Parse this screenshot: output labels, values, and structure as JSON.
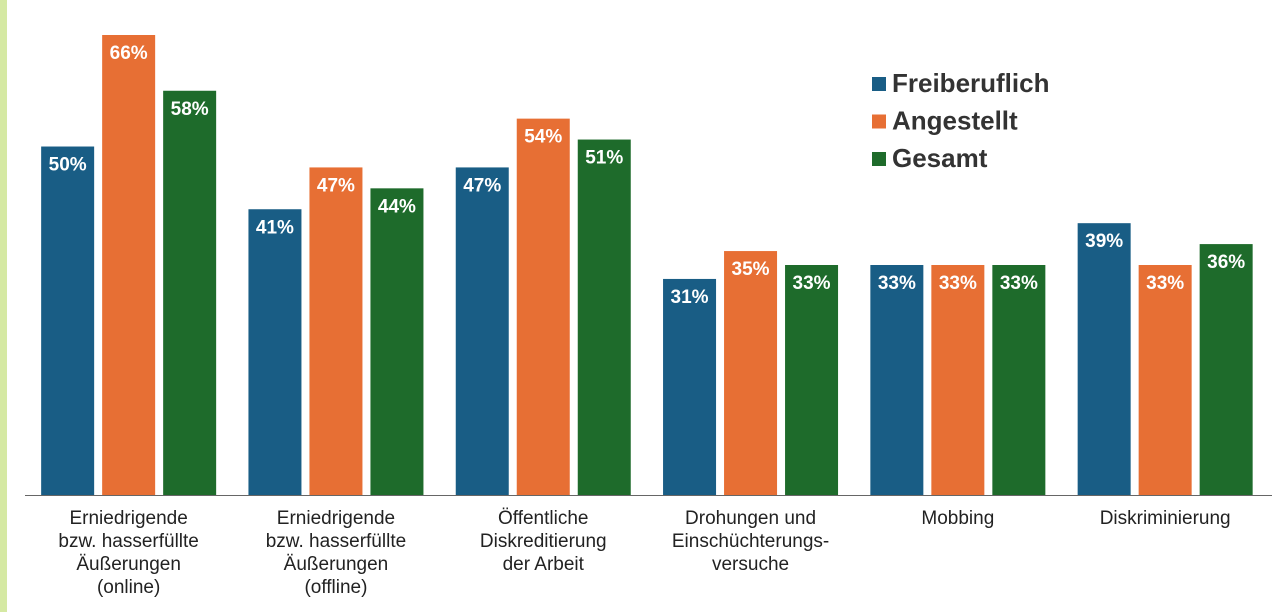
{
  "chart_data": {
    "type": "bar",
    "categories": [
      [
        "Erniedrigende",
        "bzw. hasserfüllte",
        "Äußerungen",
        "(online)"
      ],
      [
        "Erniedrigende",
        "bzw. hasserfüllte",
        "Äußerungen",
        "(offline)"
      ],
      [
        "Öffentliche",
        "Diskreditierung",
        "der Arbeit"
      ],
      [
        "Drohungen und",
        "Einschüchterungs-",
        "versuche"
      ],
      [
        "Mobbing"
      ],
      [
        "Diskriminierung"
      ]
    ],
    "series": [
      {
        "name": "Freiberuflich",
        "color": "#195d85",
        "values": [
          50,
          41,
          47,
          31,
          33,
          39
        ],
        "value_labels": [
          "50%",
          "41%",
          "47%",
          "31%",
          "33%",
          "39%"
        ]
      },
      {
        "name": "Angestellt",
        "color": "#e76f34",
        "values": [
          66,
          47,
          54,
          35,
          33,
          33
        ],
        "value_labels": [
          "66%",
          "47%",
          "54%",
          "35%",
          "33%",
          "33%"
        ]
      },
      {
        "name": "Gesamt",
        "color": "#1e6b2b",
        "values": [
          58,
          44,
          51,
          33,
          33,
          36
        ],
        "value_labels": [
          "58%",
          "44%",
          "51%",
          "33%",
          "33%",
          "36%"
        ]
      }
    ],
    "legend": "upper right"
  }
}
